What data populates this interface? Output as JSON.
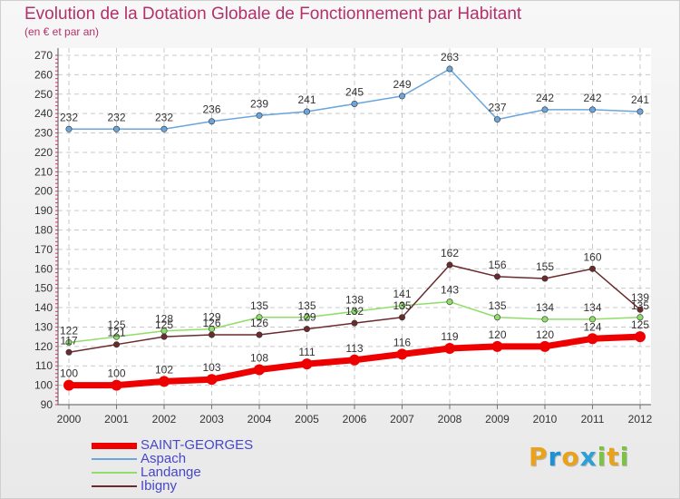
{
  "chart_data": {
    "type": "line",
    "title": "Evolution de la Dotation Globale de Fonctionnement par Habitant",
    "subtitle": "(en € et par an)",
    "x": [
      "2000",
      "2001",
      "2002",
      "2003",
      "2004",
      "2005",
      "2006",
      "2007",
      "2008",
      "2009",
      "2010",
      "2011",
      "2012"
    ],
    "yticks": [
      90,
      100,
      110,
      120,
      130,
      140,
      150,
      160,
      170,
      180,
      190,
      200,
      210,
      220,
      230,
      240,
      250,
      260,
      270
    ],
    "ylim": [
      90,
      270
    ],
    "grid": true,
    "legend_position": "bottom-left",
    "series": [
      {
        "name": "Aspach",
        "color": "#6aa6dc",
        "values": [
          232,
          232,
          232,
          236,
          239,
          241,
          245,
          249,
          263,
          237,
          242,
          242,
          241
        ]
      },
      {
        "name": "Landange",
        "color": "#8fde6a",
        "values": [
          122,
          125,
          128,
          129,
          135,
          135,
          138,
          141,
          143,
          135,
          134,
          134,
          135
        ]
      },
      {
        "name": "Ibigny",
        "color": "#6b2a2e",
        "values": [
          117,
          121,
          125,
          126,
          126,
          129,
          132,
          135,
          162,
          156,
          155,
          160,
          139
        ]
      },
      {
        "name": "SAINT-GEORGES",
        "color": "#ee0000",
        "values": [
          100,
          100,
          102,
          103,
          108,
          111,
          113,
          116,
          119,
          120,
          120,
          124,
          125
        ]
      }
    ],
    "legend": [
      "SAINT-GEORGES",
      "Aspach",
      "Landange",
      "Ibigny"
    ]
  },
  "brand": {
    "letters": [
      "P",
      "r",
      "o",
      "x",
      "i",
      "t",
      "i"
    ],
    "colors": [
      "#e8a21c",
      "#1e90d6",
      "#e8a21c",
      "#2f9fd8",
      "#7dc242",
      "#e8a21c",
      "#7dc242"
    ]
  }
}
